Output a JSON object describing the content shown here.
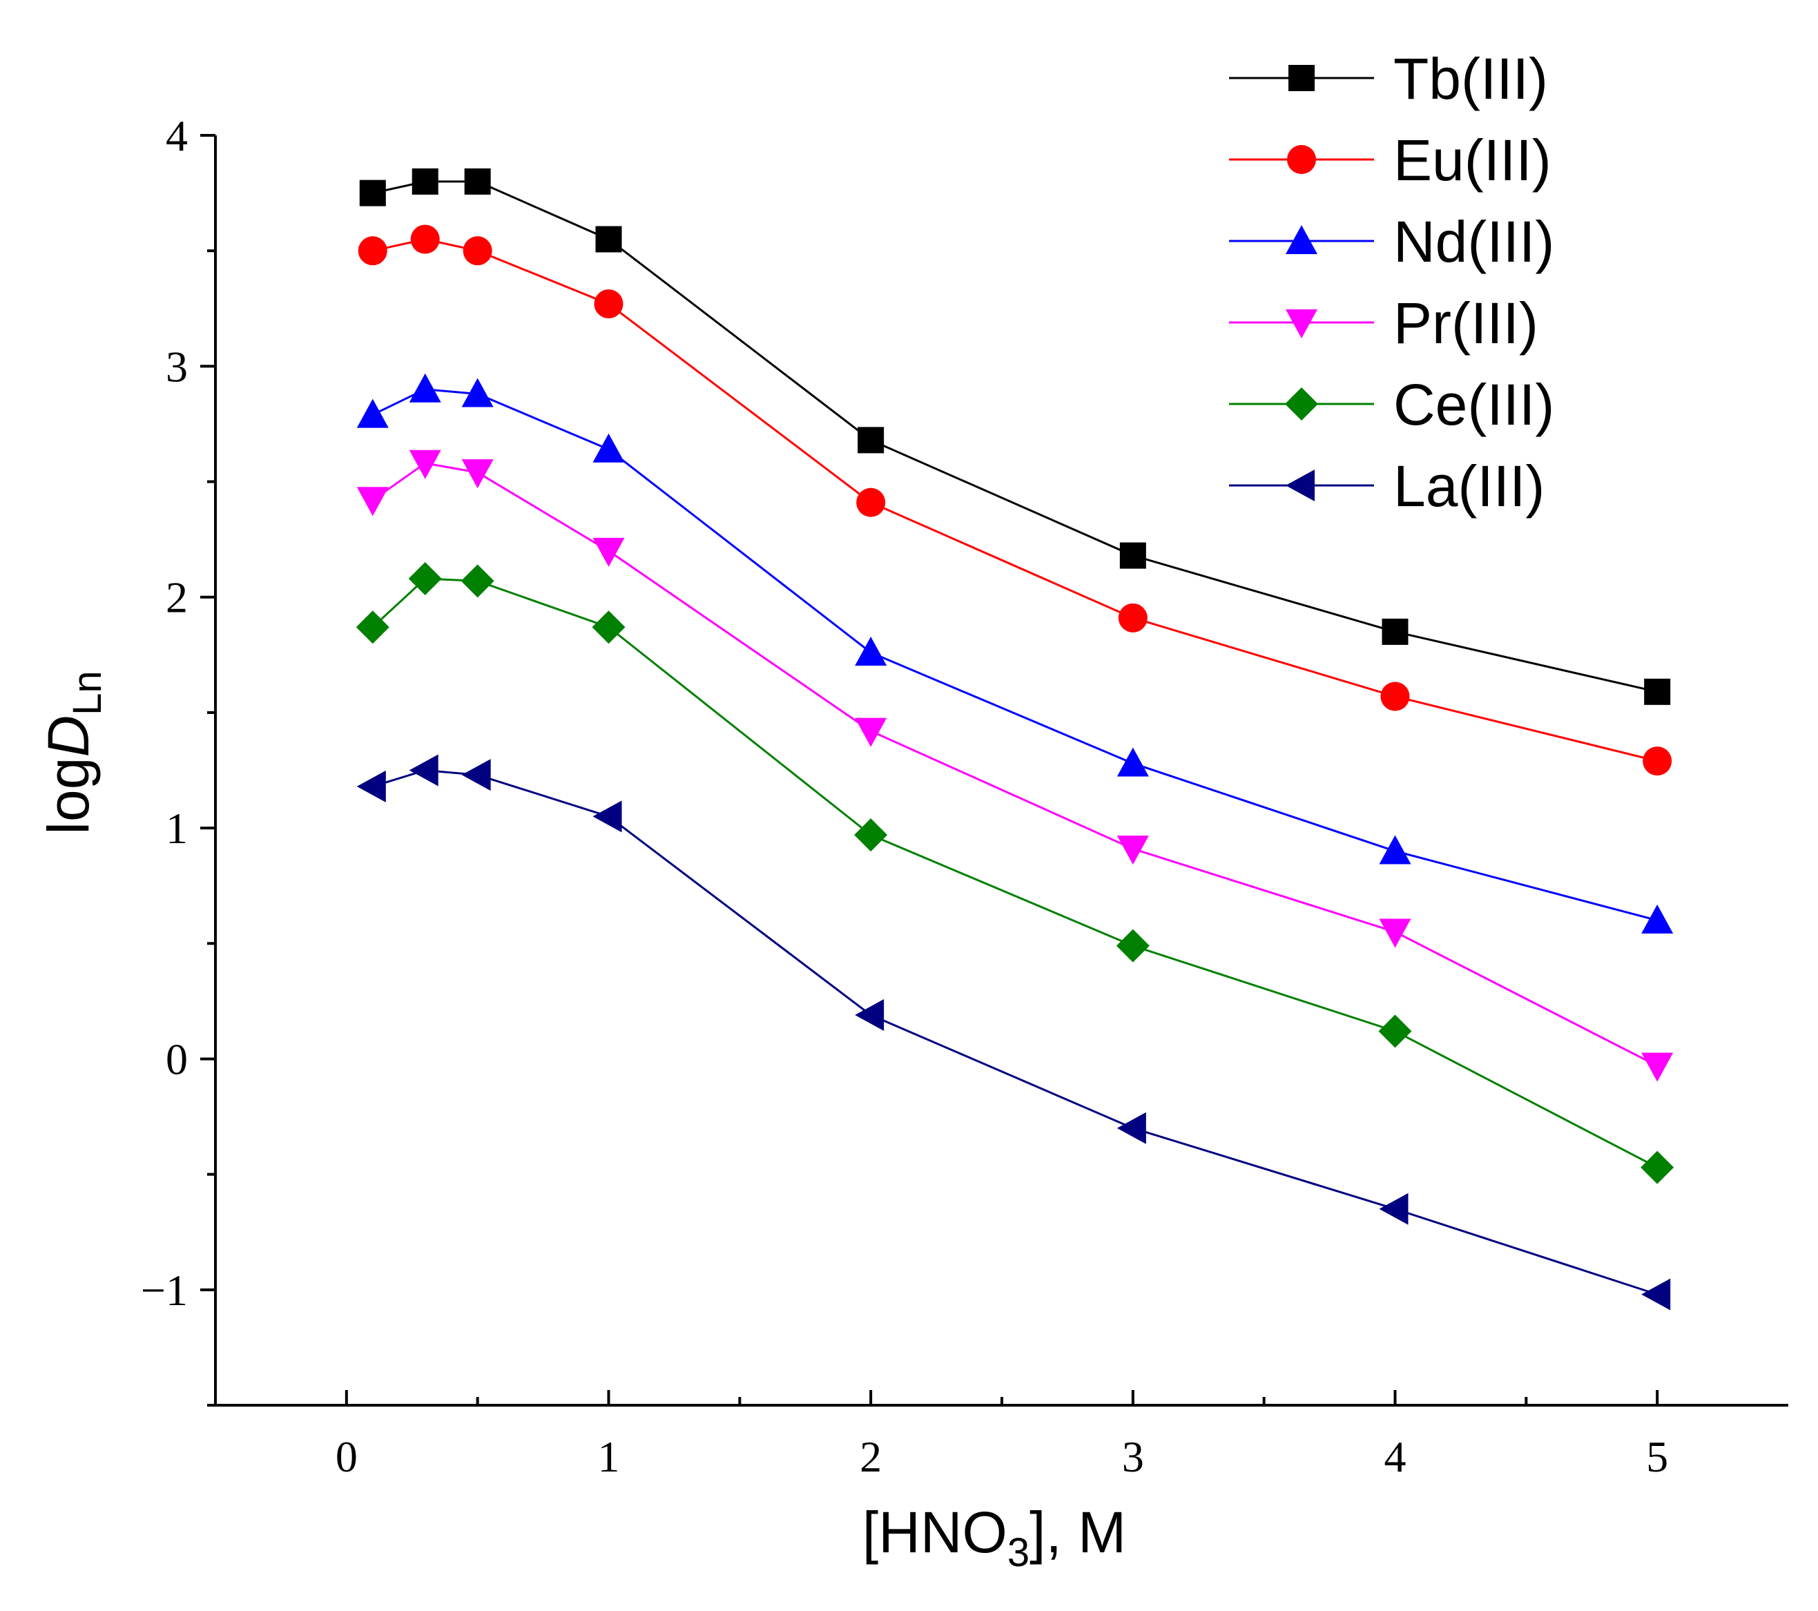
{
  "chart_data": {
    "type": "line",
    "title": "",
    "xlabel": {
      "main": "[HNO",
      "sub": "3",
      "tail": "], M"
    },
    "ylabel": {
      "main": "log",
      "italic": "D",
      "sub": "Ln"
    },
    "xlim": [
      -0.5,
      5.5
    ],
    "ylim": [
      -1.5,
      4.0
    ],
    "xticks": [
      0,
      1,
      2,
      3,
      4,
      5
    ],
    "xtick_labels": [
      "0",
      "1",
      "2",
      "3",
      "4",
      "5"
    ],
    "yticks": [
      -1,
      0,
      1,
      2,
      3,
      4
    ],
    "ytick_labels": [
      "−1",
      "0",
      "1",
      "2",
      "3",
      "4"
    ],
    "grid": false,
    "legend_position": "top-right",
    "x": [
      0.1,
      0.3,
      0.5,
      1,
      2,
      3,
      4,
      5
    ],
    "series": [
      {
        "name": "Tb(III)",
        "color": "#000000",
        "marker": "square",
        "values": [
          3.75,
          3.8,
          3.8,
          3.55,
          2.68,
          2.18,
          1.85,
          1.59
        ]
      },
      {
        "name": "Eu(III)",
        "color": "#ff0000",
        "marker": "circle",
        "values": [
          3.5,
          3.55,
          3.5,
          3.27,
          2.41,
          1.91,
          1.57,
          1.29
        ]
      },
      {
        "name": "Nd(III)",
        "color": "#0000ff",
        "marker": "triangle-up",
        "values": [
          2.79,
          2.9,
          2.88,
          2.64,
          1.76,
          1.28,
          0.9,
          0.6
        ]
      },
      {
        "name": "Pr(III)",
        "color": "#ff00ff",
        "marker": "triangle-down",
        "values": [
          2.42,
          2.58,
          2.54,
          2.2,
          1.42,
          0.91,
          0.55,
          -0.03
        ]
      },
      {
        "name": "Ce(III)",
        "color": "#008000",
        "marker": "diamond",
        "values": [
          1.87,
          2.08,
          2.07,
          1.87,
          0.97,
          0.49,
          0.12,
          -0.47
        ]
      },
      {
        "name": "La(III)",
        "color": "#000080",
        "marker": "triangle-left",
        "values": [
          1.18,
          1.25,
          1.23,
          1.05,
          0.19,
          -0.3,
          -0.65,
          -1.02
        ]
      }
    ]
  }
}
